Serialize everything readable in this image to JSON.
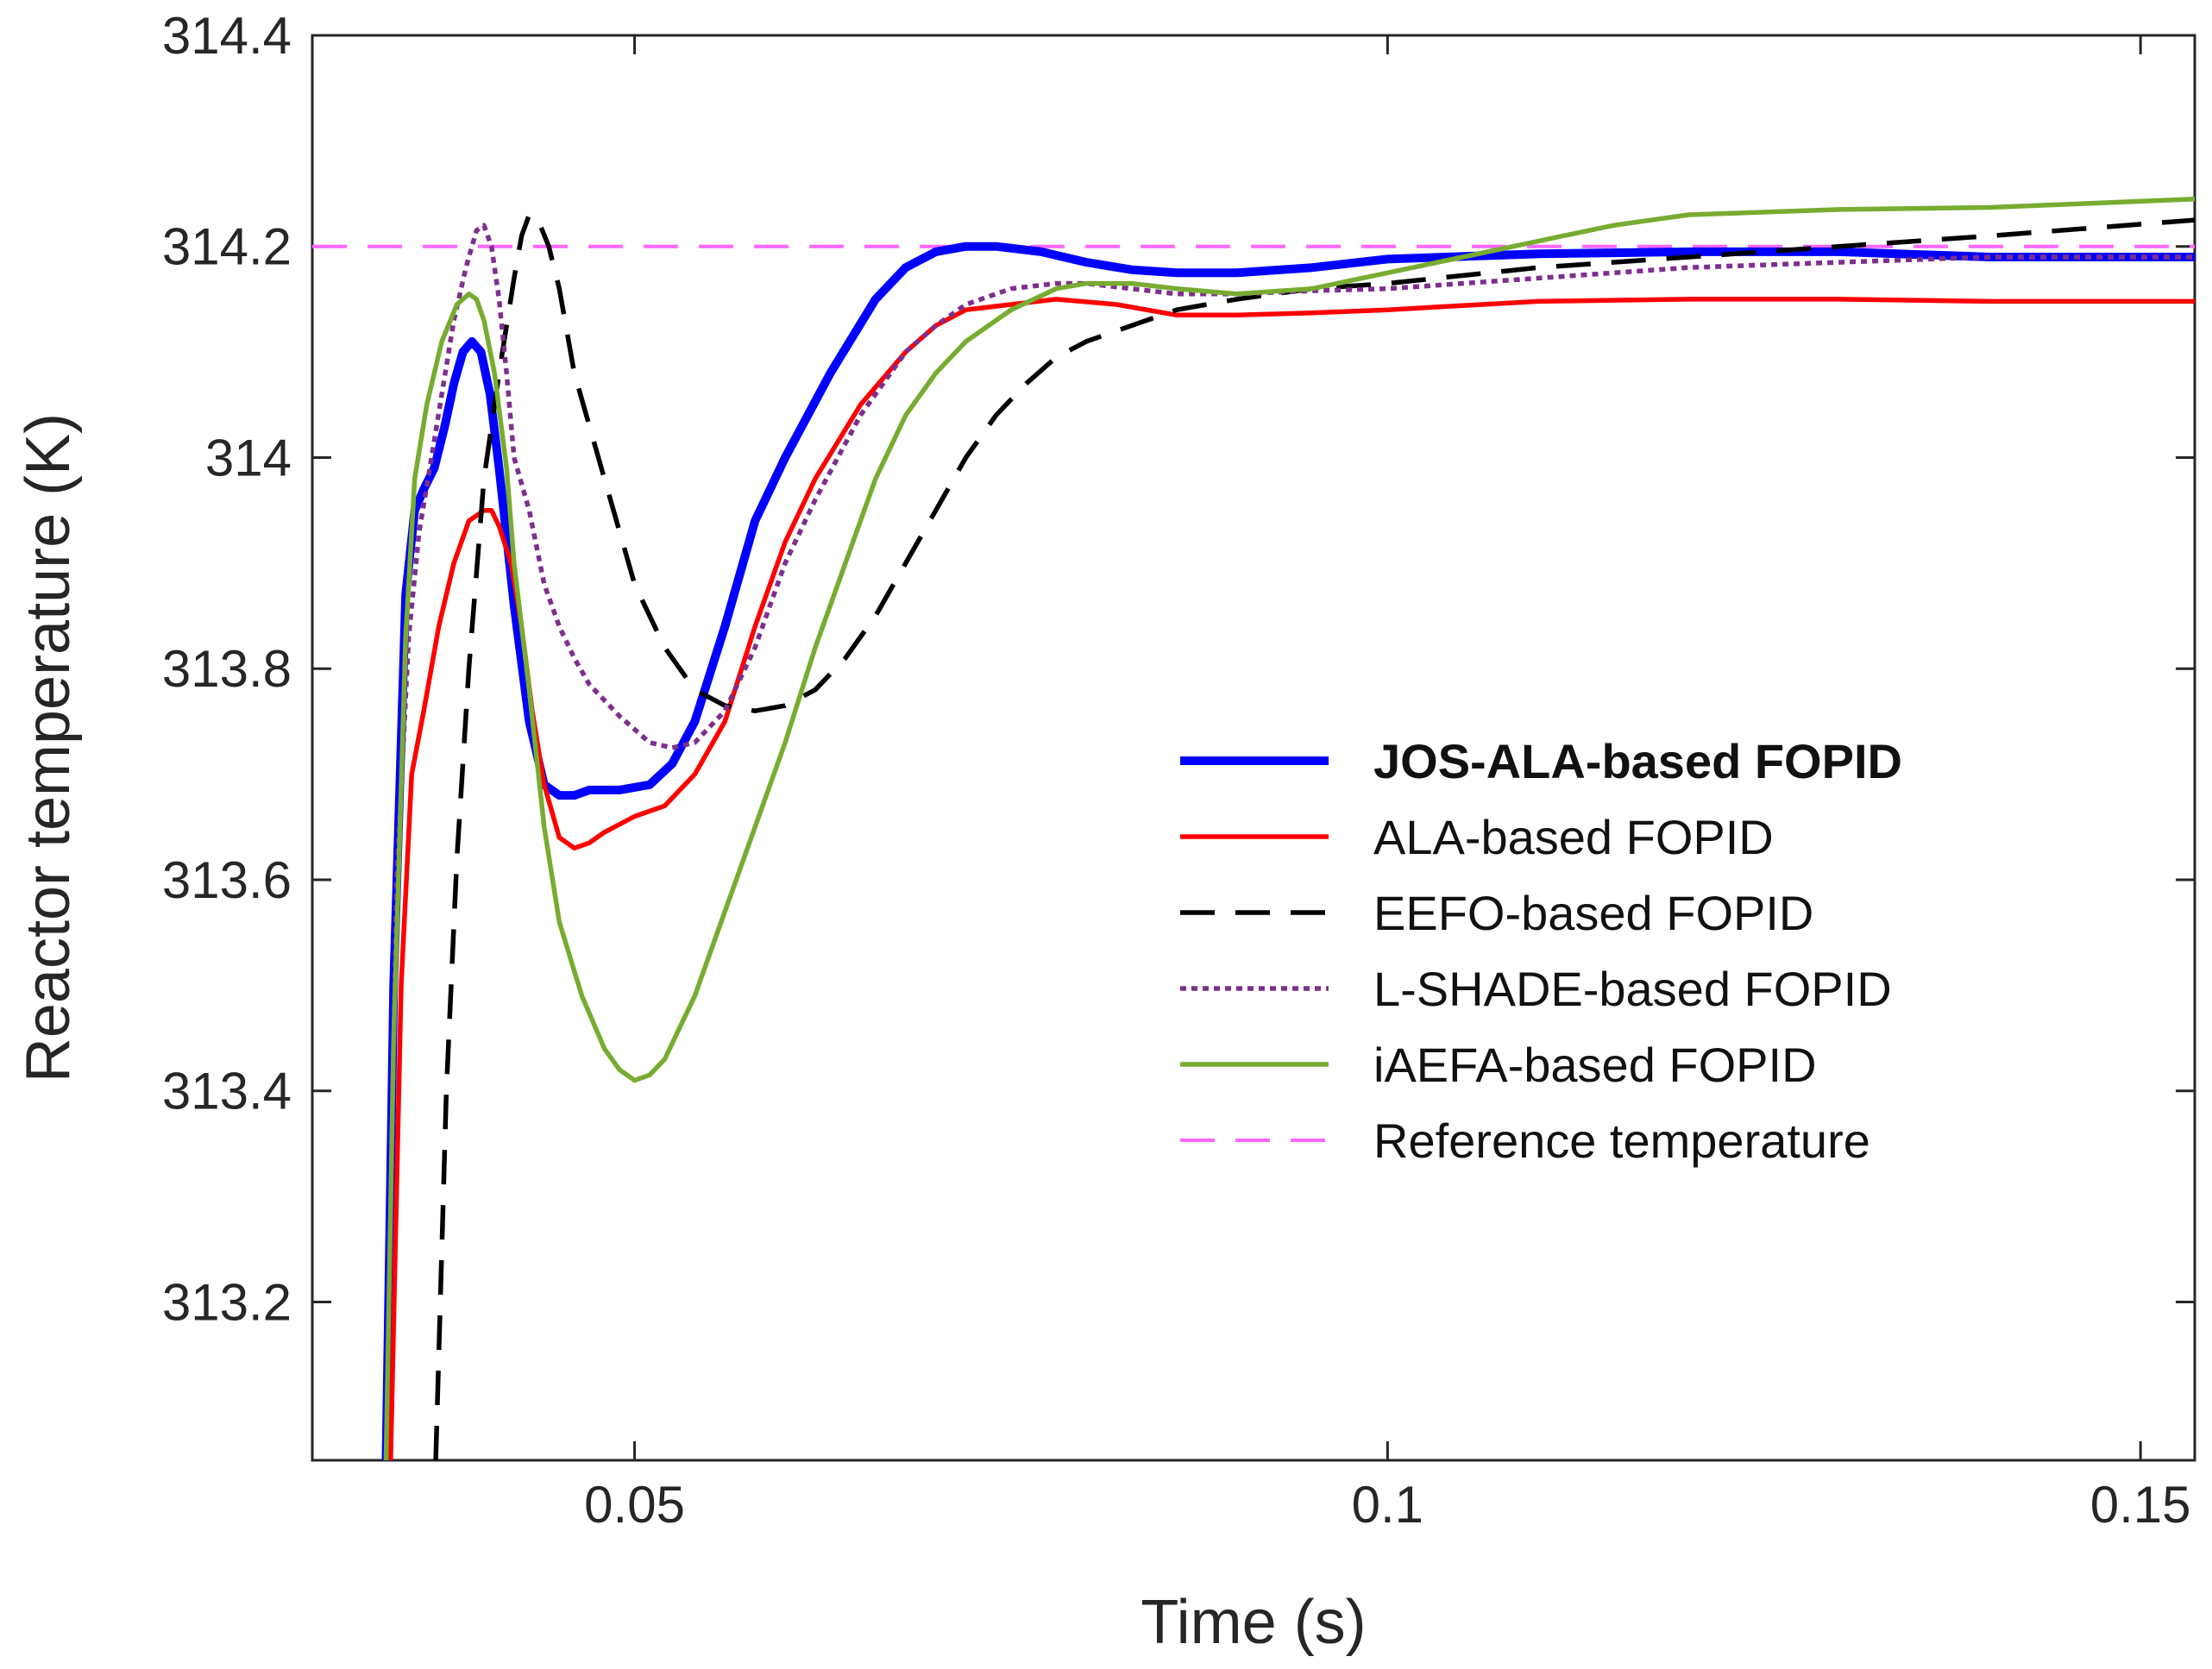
{
  "chart_data": {
    "type": "line",
    "title": "",
    "xlabel": "Time (s)",
    "ylabel": "Reactor temperature (K)",
    "xlim": [
      0.0286,
      0.1536
    ],
    "ylim": [
      313.05,
      314.4
    ],
    "xticks": [
      0.05,
      0.1,
      0.15
    ],
    "xtick_labels": [
      "0.05",
      "0.1",
      "0.15"
    ],
    "yticks": [
      313.2,
      313.4,
      313.6,
      313.8,
      314.0,
      314.2,
      314.4
    ],
    "ytick_labels": [
      "313.2",
      "313.4",
      "313.6",
      "313.8",
      "314",
      "314.2",
      "314.4"
    ],
    "grid": false,
    "legend_position": "lower-right",
    "series": [
      {
        "name": "JOS-ALA-based FOPID",
        "color": "#0000FF",
        "style": "solid",
        "width": "thick",
        "bold_label": true,
        "x": [
          0.0335,
          0.034,
          0.0348,
          0.0354,
          0.036,
          0.0367,
          0.0374,
          0.038,
          0.0386,
          0.0392,
          0.0398,
          0.0404,
          0.041,
          0.042,
          0.043,
          0.044,
          0.045,
          0.046,
          0.047,
          0.049,
          0.051,
          0.0525,
          0.054,
          0.056,
          0.058,
          0.06,
          0.063,
          0.066,
          0.068,
          0.07,
          0.072,
          0.074,
          0.077,
          0.08,
          0.083,
          0.086,
          0.09,
          0.095,
          0.1,
          0.11,
          0.12,
          0.13,
          0.14,
          0.1536
        ],
        "values": [
          313.05,
          313.5,
          313.87,
          313.95,
          313.97,
          313.99,
          314.03,
          314.07,
          314.1,
          314.11,
          314.1,
          314.06,
          313.99,
          313.86,
          313.75,
          313.69,
          313.68,
          313.68,
          313.685,
          313.685,
          313.69,
          313.71,
          313.75,
          313.84,
          313.94,
          314.0,
          314.08,
          314.15,
          314.18,
          314.195,
          314.2,
          314.2,
          314.195,
          314.185,
          314.178,
          314.175,
          314.175,
          314.18,
          314.188,
          314.193,
          314.195,
          314.195,
          314.19,
          314.19
        ]
      },
      {
        "name": "ALA-based FOPID",
        "color": "#FF0000",
        "style": "solid",
        "width": "normal",
        "bold_label": false,
        "x": [
          0.0338,
          0.0345,
          0.0352,
          0.036,
          0.037,
          0.038,
          0.039,
          0.04,
          0.0405,
          0.041,
          0.0418,
          0.0425,
          0.0432,
          0.044,
          0.045,
          0.046,
          0.047,
          0.048,
          0.05,
          0.052,
          0.054,
          0.056,
          0.058,
          0.06,
          0.062,
          0.065,
          0.068,
          0.07,
          0.072,
          0.075,
          0.078,
          0.082,
          0.086,
          0.09,
          0.095,
          0.1,
          0.11,
          0.12,
          0.13,
          0.14,
          0.1536
        ],
        "values": [
          313.05,
          313.5,
          313.7,
          313.76,
          313.84,
          313.9,
          313.94,
          313.95,
          313.95,
          313.935,
          313.9,
          313.84,
          313.76,
          313.69,
          313.64,
          313.63,
          313.635,
          313.645,
          313.66,
          313.67,
          313.7,
          313.75,
          313.84,
          313.92,
          313.98,
          314.05,
          314.1,
          314.125,
          314.14,
          314.145,
          314.15,
          314.145,
          314.135,
          314.135,
          314.137,
          314.14,
          314.148,
          314.15,
          314.15,
          314.148,
          314.148
        ]
      },
      {
        "name": "EEFO-based FOPID",
        "color": "#000000",
        "style": "dashed",
        "width": "normal",
        "bold_label": false,
        "x": [
          0.0368,
          0.0375,
          0.0382,
          0.039,
          0.04,
          0.041,
          0.042,
          0.0425,
          0.043,
          0.0436,
          0.0443,
          0.045,
          0.046,
          0.048,
          0.05,
          0.052,
          0.054,
          0.056,
          0.058,
          0.06,
          0.062,
          0.064,
          0.066,
          0.068,
          0.07,
          0.072,
          0.074,
          0.076,
          0.078,
          0.08,
          0.082,
          0.084,
          0.086,
          0.088,
          0.09,
          0.095,
          0.1,
          0.11,
          0.12,
          0.13,
          0.14,
          0.1536
        ],
        "values": [
          313.05,
          313.4,
          313.62,
          313.8,
          313.98,
          314.08,
          314.17,
          314.21,
          314.23,
          314.225,
          314.2,
          314.16,
          314.08,
          313.98,
          313.88,
          313.82,
          313.78,
          313.765,
          313.76,
          313.765,
          313.78,
          313.81,
          313.85,
          313.9,
          313.95,
          314.0,
          314.04,
          314.07,
          314.095,
          314.11,
          314.12,
          314.13,
          314.14,
          314.145,
          314.15,
          314.16,
          314.165,
          314.18,
          314.19,
          314.2,
          314.21,
          314.225
        ]
      },
      {
        "name": "L-SHADE-based FOPID",
        "color": "#7E2F8E",
        "style": "dotted",
        "width": "normal",
        "bold_label": false,
        "x": [
          0.0335,
          0.0342,
          0.035,
          0.0357,
          0.0364,
          0.0372,
          0.038,
          0.0388,
          0.0395,
          0.04,
          0.0405,
          0.041,
          0.0415,
          0.042,
          0.043,
          0.044,
          0.045,
          0.046,
          0.047,
          0.049,
          0.051,
          0.0525,
          0.054,
          0.056,
          0.058,
          0.06,
          0.062,
          0.065,
          0.068,
          0.07,
          0.072,
          0.075,
          0.078,
          0.08,
          0.083,
          0.086,
          0.09,
          0.095,
          0.1,
          0.11,
          0.12,
          0.13,
          0.14,
          0.1536
        ],
        "values": [
          313.05,
          313.6,
          313.83,
          313.93,
          313.99,
          314.06,
          314.13,
          314.18,
          314.215,
          314.22,
          314.2,
          314.15,
          314.08,
          314.0,
          313.95,
          313.88,
          313.84,
          313.81,
          313.785,
          313.755,
          313.73,
          313.725,
          313.73,
          313.76,
          313.82,
          313.9,
          313.96,
          314.04,
          314.1,
          314.125,
          314.145,
          314.16,
          314.165,
          314.165,
          314.16,
          314.155,
          314.155,
          314.158,
          314.16,
          314.17,
          314.18,
          314.185,
          314.19,
          314.19
        ]
      },
      {
        "name": "iAEFA-based FOPID",
        "color": "#77AC30",
        "style": "solid",
        "width": "normal",
        "bold_label": false,
        "x": [
          0.0335,
          0.034,
          0.0348,
          0.0354,
          0.0362,
          0.0372,
          0.0382,
          0.039,
          0.0395,
          0.04,
          0.0407,
          0.0415,
          0.042,
          0.043,
          0.044,
          0.045,
          0.0465,
          0.048,
          0.049,
          0.05,
          0.051,
          0.052,
          0.053,
          0.054,
          0.055,
          0.056,
          0.058,
          0.06,
          0.062,
          0.064,
          0.066,
          0.068,
          0.07,
          0.072,
          0.075,
          0.078,
          0.08,
          0.083,
          0.086,
          0.09,
          0.095,
          0.1,
          0.105,
          0.11,
          0.115,
          0.12,
          0.13,
          0.14,
          0.1536
        ],
        "values": [
          313.05,
          313.45,
          313.83,
          313.98,
          314.05,
          314.11,
          314.145,
          314.155,
          314.15,
          314.13,
          314.08,
          313.99,
          313.9,
          313.78,
          313.65,
          313.56,
          313.49,
          313.44,
          313.42,
          313.41,
          313.415,
          313.43,
          313.46,
          313.49,
          313.53,
          313.57,
          313.65,
          313.73,
          313.82,
          313.9,
          313.98,
          314.04,
          314.08,
          314.11,
          314.14,
          314.16,
          314.165,
          314.165,
          314.16,
          314.155,
          314.16,
          314.175,
          314.19,
          314.205,
          314.22,
          314.23,
          314.235,
          314.237,
          314.245
        ]
      },
      {
        "name": "Reference temperature",
        "color": "#FF66FF",
        "style": "dashed",
        "width": "thin",
        "bold_label": false,
        "x": [
          0.0286,
          0.1536
        ],
        "values": [
          314.2,
          314.2
        ]
      }
    ]
  }
}
